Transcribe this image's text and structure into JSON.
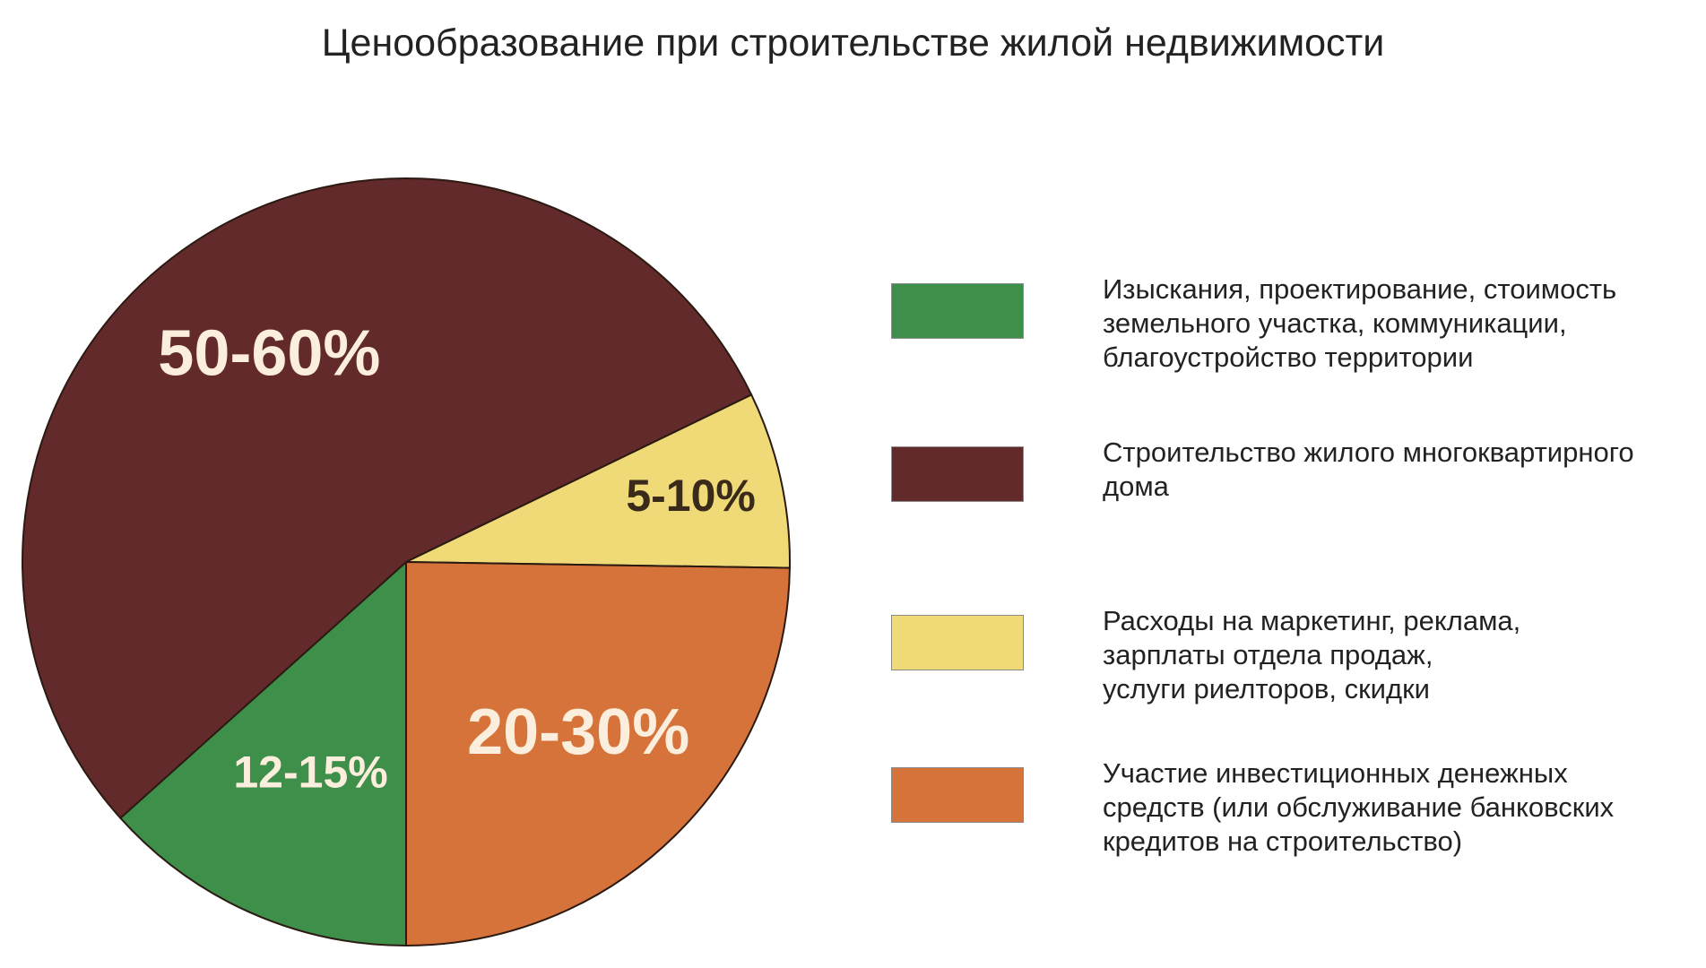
{
  "chart_data": {
    "type": "pie",
    "title": "Ценообразование при строительстве жилой недвижимости",
    "slices": [
      {
        "label": "12-15%",
        "value": 13.5,
        "color": "#3e8f4a",
        "legend": "Изыскания, проектирование,  стоимость\nземельного участка, коммуникации,\nблагоустройство территории"
      },
      {
        "label": "50-60%",
        "value": 55,
        "color": "#622a2b",
        "legend": "Строительство жилого многоквартирного\nдома"
      },
      {
        "label": "5-10%",
        "value": 7.5,
        "color": "#efda77",
        "legend": "Расходы на маркетинг, реклама,\nзарплаты отдела продаж,\nуслуги риелторов, скидки"
      },
      {
        "label": "20-30%",
        "value": 25,
        "color": "#d6733b",
        "legend": "Участие инвестиционных денежных\nсредств (или обслуживание банковских\nкредитов на строительство)"
      }
    ],
    "label_colors": [
      "#fbeedd",
      "#fbeedd",
      "#3a2a1a",
      "#fbeedd"
    ],
    "legend_order": [
      0,
      1,
      2,
      3
    ],
    "legend_position": "right"
  }
}
